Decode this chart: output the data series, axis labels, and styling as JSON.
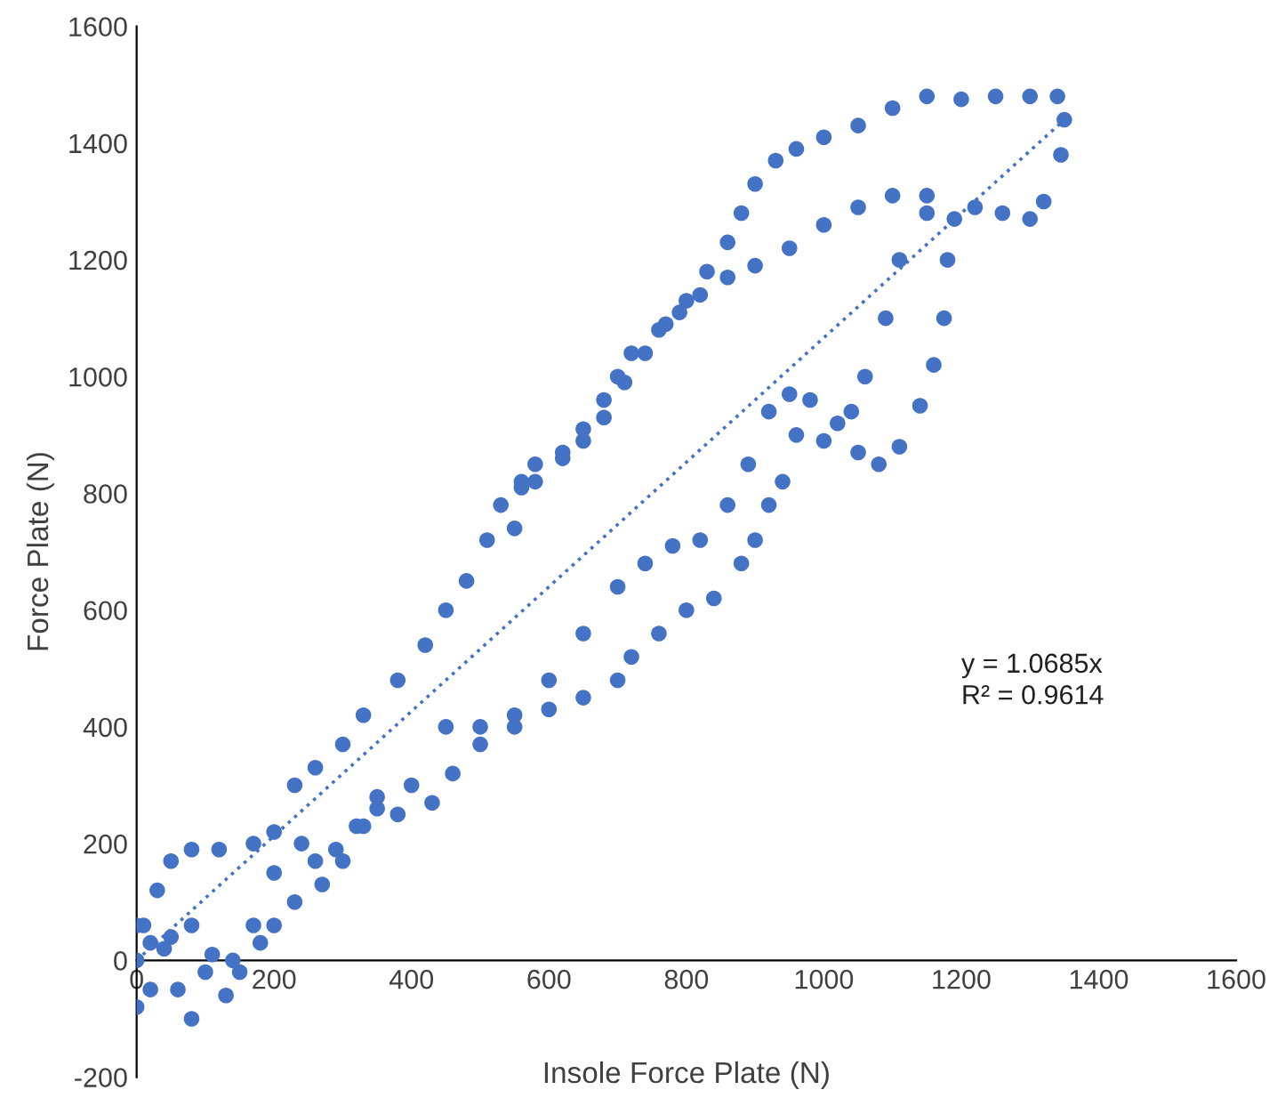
{
  "chart_data": {
    "type": "scatter",
    "xlabel": "Insole Force Plate (N)",
    "ylabel": "Force Plate (N)",
    "xlim": [
      0,
      1600
    ],
    "xticks": [
      0,
      200,
      400,
      600,
      800,
      1000,
      1200,
      1400,
      1600
    ],
    "ylim": [
      -200,
      1600
    ],
    "yticks": [
      -200,
      0,
      200,
      400,
      600,
      800,
      1000,
      1200,
      1400,
      1600
    ],
    "grid": false,
    "marker": "circle",
    "annotations": [
      "y = 1.0685x",
      "R² = 0.9614"
    ],
    "series": [
      {
        "color": "#4472c4",
        "x": [
          0,
          10,
          30,
          50,
          80,
          120,
          170,
          200,
          230,
          260,
          300,
          330,
          380,
          420,
          450,
          480,
          510,
          530,
          560,
          580,
          620,
          650,
          680,
          710,
          740,
          770,
          800,
          830,
          860,
          880,
          900,
          930,
          960,
          1000,
          1050,
          1100,
          1150,
          1200,
          1250,
          1300,
          1340,
          1350,
          1345,
          1320,
          1300,
          1260,
          1220,
          1190,
          1180,
          1150,
          1100,
          1050,
          1000,
          950,
          900,
          860,
          820,
          790,
          760,
          720,
          700,
          680,
          650,
          620,
          580,
          560,
          550,
          1175,
          1160,
          1140,
          1110,
          1080,
          1050,
          1000,
          960,
          940,
          920,
          900,
          880,
          840,
          800,
          760,
          720,
          700,
          650,
          600,
          550,
          500,
          460,
          430,
          380,
          350,
          330,
          300,
          270,
          230,
          200,
          180,
          150,
          130,
          100,
          80,
          60,
          40,
          20,
          0,
          1150,
          1110,
          1090,
          1060,
          1040,
          1020,
          980,
          950,
          920,
          890,
          860,
          820,
          780,
          740,
          700,
          650,
          600,
          550,
          500,
          450,
          400,
          350,
          320,
          290,
          260,
          240,
          200,
          170,
          140,
          110,
          80,
          50,
          20,
          0
        ],
        "values": [
          0,
          60,
          120,
          170,
          190,
          190,
          200,
          220,
          300,
          330,
          370,
          420,
          480,
          540,
          600,
          650,
          720,
          780,
          810,
          820,
          860,
          890,
          930,
          990,
          1040,
          1090,
          1130,
          1180,
          1230,
          1280,
          1330,
          1370,
          1390,
          1410,
          1430,
          1460,
          1480,
          1475,
          1480,
          1480,
          1480,
          1440,
          1380,
          1300,
          1270,
          1280,
          1290,
          1270,
          1200,
          1310,
          1310,
          1290,
          1260,
          1220,
          1190,
          1170,
          1140,
          1110,
          1080,
          1040,
          1000,
          960,
          910,
          870,
          850,
          820,
          740,
          1100,
          1020,
          950,
          880,
          850,
          870,
          890,
          900,
          820,
          780,
          720,
          680,
          620,
          600,
          560,
          520,
          480,
          450,
          430,
          400,
          370,
          320,
          270,
          250,
          260,
          230,
          170,
          130,
          100,
          60,
          30,
          -20,
          -60,
          -20,
          -100,
          -50,
          20,
          -50,
          -80,
          1280,
          1200,
          1100,
          1000,
          940,
          920,
          960,
          970,
          940,
          850,
          780,
          720,
          710,
          680,
          640,
          560,
          480,
          420,
          400,
          400,
          300,
          280,
          230,
          190,
          170,
          200,
          150,
          60,
          0,
          10,
          60,
          40,
          30,
          60
        ]
      },
      {
        "type": "line",
        "color": "#4472c4",
        "line_style": "dotted",
        "marker": "none",
        "x": [
          0,
          1350
        ],
        "values": [
          0,
          1440
        ]
      }
    ]
  }
}
